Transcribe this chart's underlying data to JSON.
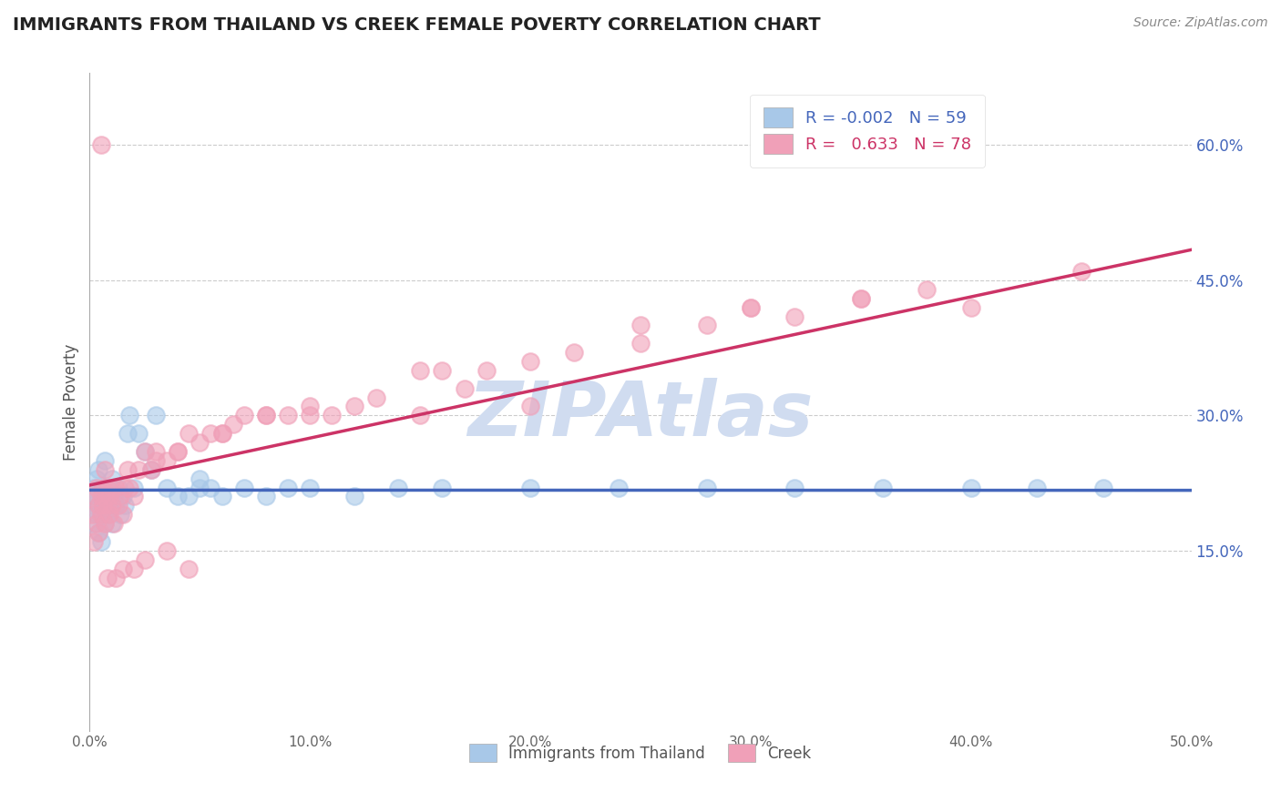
{
  "title": "IMMIGRANTS FROM THAILAND VS CREEK FEMALE POVERTY CORRELATION CHART",
  "source": "Source: ZipAtlas.com",
  "xlabel_blue": "Immigrants from Thailand",
  "xlabel_pink": "Creek",
  "ylabel": "Female Poverty",
  "xlim": [
    0.0,
    0.5
  ],
  "ylim": [
    -0.05,
    0.68
  ],
  "xticks": [
    0.0,
    0.1,
    0.2,
    0.3,
    0.4,
    0.5
  ],
  "xtick_labels": [
    "0.0%",
    "10.0%",
    "20.0%",
    "30.0%",
    "40.0%",
    "50.0%"
  ],
  "yticks_right": [
    0.15,
    0.3,
    0.45,
    0.6
  ],
  "ytick_labels_right": [
    "15.0%",
    "30.0%",
    "45.0%",
    "60.0%"
  ],
  "R_blue": -0.002,
  "N_blue": 59,
  "R_pink": 0.633,
  "N_pink": 78,
  "blue_dot_color": "#A8C8E8",
  "pink_dot_color": "#F0A0B8",
  "blue_line_color": "#4466BB",
  "pink_line_color": "#CC3366",
  "watermark": "ZIPAtlas",
  "watermark_color": "#D0DCF0",
  "background_color": "#FFFFFF",
  "grid_color": "#CCCCCC",
  "title_color": "#222222",
  "right_axis_color": "#4466BB",
  "blue_scatter_x": [
    0.001,
    0.002,
    0.002,
    0.003,
    0.003,
    0.003,
    0.004,
    0.004,
    0.004,
    0.005,
    0.005,
    0.005,
    0.006,
    0.006,
    0.007,
    0.007,
    0.007,
    0.008,
    0.008,
    0.008,
    0.009,
    0.009,
    0.01,
    0.01,
    0.011,
    0.012,
    0.013,
    0.014,
    0.015,
    0.016,
    0.017,
    0.018,
    0.02,
    0.022,
    0.025,
    0.028,
    0.03,
    0.035,
    0.04,
    0.045,
    0.05,
    0.055,
    0.06,
    0.07,
    0.08,
    0.09,
    0.1,
    0.12,
    0.14,
    0.16,
    0.2,
    0.24,
    0.28,
    0.32,
    0.36,
    0.4,
    0.43,
    0.46,
    0.05
  ],
  "blue_scatter_y": [
    0.2,
    0.18,
    0.22,
    0.21,
    0.19,
    0.23,
    0.2,
    0.17,
    0.24,
    0.19,
    0.21,
    0.16,
    0.22,
    0.2,
    0.18,
    0.22,
    0.25,
    0.2,
    0.21,
    0.19,
    0.22,
    0.2,
    0.23,
    0.18,
    0.21,
    0.2,
    0.22,
    0.19,
    0.21,
    0.2,
    0.28,
    0.3,
    0.22,
    0.28,
    0.26,
    0.24,
    0.3,
    0.22,
    0.21,
    0.21,
    0.22,
    0.22,
    0.21,
    0.22,
    0.21,
    0.22,
    0.22,
    0.21,
    0.22,
    0.22,
    0.22,
    0.22,
    0.22,
    0.22,
    0.22,
    0.22,
    0.22,
    0.22,
    0.23
  ],
  "pink_scatter_x": [
    0.001,
    0.002,
    0.002,
    0.003,
    0.003,
    0.004,
    0.004,
    0.005,
    0.005,
    0.006,
    0.006,
    0.007,
    0.007,
    0.008,
    0.008,
    0.009,
    0.009,
    0.01,
    0.01,
    0.011,
    0.012,
    0.013,
    0.014,
    0.015,
    0.016,
    0.017,
    0.018,
    0.02,
    0.022,
    0.025,
    0.028,
    0.03,
    0.035,
    0.04,
    0.045,
    0.05,
    0.055,
    0.06,
    0.065,
    0.07,
    0.08,
    0.09,
    0.1,
    0.11,
    0.12,
    0.13,
    0.15,
    0.16,
    0.17,
    0.18,
    0.2,
    0.22,
    0.25,
    0.28,
    0.3,
    0.32,
    0.35,
    0.38,
    0.03,
    0.04,
    0.06,
    0.08,
    0.1,
    0.15,
    0.2,
    0.25,
    0.3,
    0.35,
    0.4,
    0.45,
    0.02,
    0.025,
    0.035,
    0.045,
    0.015,
    0.012,
    0.008,
    0.005
  ],
  "pink_scatter_y": [
    0.19,
    0.16,
    0.21,
    0.18,
    0.22,
    0.2,
    0.17,
    0.21,
    0.19,
    0.22,
    0.2,
    0.18,
    0.24,
    0.2,
    0.22,
    0.19,
    0.21,
    0.22,
    0.2,
    0.18,
    0.22,
    0.2,
    0.21,
    0.19,
    0.22,
    0.24,
    0.22,
    0.21,
    0.24,
    0.26,
    0.24,
    0.26,
    0.25,
    0.26,
    0.28,
    0.27,
    0.28,
    0.28,
    0.29,
    0.3,
    0.3,
    0.3,
    0.31,
    0.3,
    0.31,
    0.32,
    0.35,
    0.35,
    0.33,
    0.35,
    0.36,
    0.37,
    0.4,
    0.4,
    0.42,
    0.41,
    0.43,
    0.44,
    0.25,
    0.26,
    0.28,
    0.3,
    0.3,
    0.3,
    0.31,
    0.38,
    0.42,
    0.43,
    0.42,
    0.46,
    0.13,
    0.14,
    0.15,
    0.13,
    0.13,
    0.12,
    0.12,
    0.6
  ]
}
